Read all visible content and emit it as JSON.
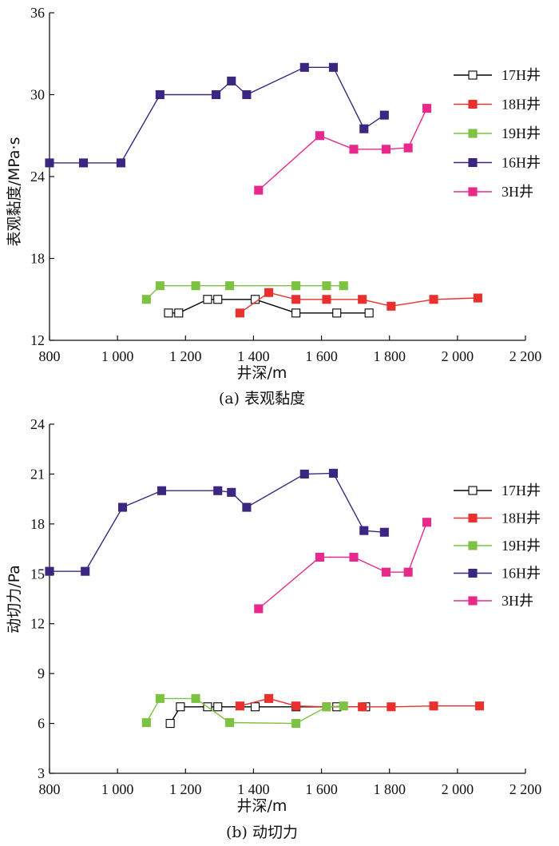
{
  "chart_data": [
    {
      "type": "line",
      "caption": "(a) 表观黏度",
      "xlabel": "井深/m",
      "ylabel": "表观黏度/MPa·s",
      "xlim": [
        800,
        2200
      ],
      "ylim": [
        12,
        36
      ],
      "xticks": [
        800,
        1000,
        1200,
        1400,
        1600,
        1800,
        2000,
        2200
      ],
      "xtick_labels": [
        "800",
        "1 000",
        "1 200",
        "1 400",
        "1 600",
        "1 800",
        "2 000",
        "2 200"
      ],
      "yticks": [
        12,
        18,
        24,
        30,
        36
      ],
      "ytick_labels": [
        "12",
        "18",
        "24",
        "30",
        "36"
      ],
      "legend_position": "right",
      "series": [
        {
          "name": "17H井",
          "color": "#000000",
          "marker": "hollow-square",
          "x": [
            1150,
            1180,
            1265,
            1295,
            1405,
            1525,
            1645,
            1740
          ],
          "y": [
            14,
            14,
            15,
            15,
            15,
            14,
            14,
            14
          ]
        },
        {
          "name": "18H井",
          "color": "#e8302e",
          "marker": "filled-square",
          "x": [
            1360,
            1445,
            1525,
            1615,
            1720,
            1805,
            1930,
            2060
          ],
          "y": [
            14,
            15.5,
            15,
            15,
            15,
            14.5,
            15,
            15.1
          ]
        },
        {
          "name": "19H井",
          "color": "#7dc242",
          "marker": "filled-square",
          "x": [
            1085,
            1125,
            1230,
            1330,
            1525,
            1615,
            1665
          ],
          "y": [
            15,
            16,
            16,
            16,
            16,
            16,
            16
          ]
        },
        {
          "name": "16H井",
          "color": "#3b2780",
          "marker": "filled-square",
          "x": [
            800,
            900,
            1010,
            1125,
            1290,
            1335,
            1380,
            1550,
            1635,
            1725,
            1785
          ],
          "y": [
            25,
            25,
            25,
            30,
            30,
            31,
            30,
            32,
            32,
            27.5,
            28.5
          ]
        },
        {
          "name": "3H井",
          "color": "#e8288a",
          "marker": "filled-square",
          "x": [
            1415,
            1595,
            1695,
            1790,
            1855,
            1910
          ],
          "y": [
            23,
            27,
            26,
            26,
            26.1,
            29
          ]
        }
      ]
    },
    {
      "type": "line",
      "caption": "(b) 动切力",
      "xlabel": "井深/m",
      "ylabel": "动切力/Pa",
      "xlim": [
        800,
        2200
      ],
      "ylim": [
        3,
        24
      ],
      "xticks": [
        800,
        1000,
        1200,
        1400,
        1600,
        1800,
        2000,
        2200
      ],
      "xtick_labels": [
        "800",
        "1 000",
        "1 200",
        "1 400",
        "1 600",
        "1 800",
        "2 000",
        "2 200"
      ],
      "yticks": [
        3,
        6,
        9,
        12,
        15,
        18,
        21,
        24
      ],
      "ytick_labels": [
        "3",
        "6",
        "9",
        "12",
        "15",
        "18",
        "21",
        "24"
      ],
      "legend_position": "right",
      "series": [
        {
          "name": "17H井",
          "color": "#000000",
          "marker": "hollow-square",
          "x": [
            1155,
            1185,
            1265,
            1295,
            1405,
            1525,
            1645,
            1730
          ],
          "y": [
            6,
            7,
            7,
            7,
            7,
            7,
            7,
            7
          ]
        },
        {
          "name": "18H井",
          "color": "#e8302e",
          "marker": "filled-square",
          "x": [
            1360,
            1445,
            1525,
            1615,
            1720,
            1805,
            1930,
            2065
          ],
          "y": [
            7.05,
            7.5,
            7.05,
            7,
            7,
            7,
            7.05,
            7.05
          ]
        },
        {
          "name": "19H井",
          "color": "#7dc242",
          "marker": "filled-square",
          "x": [
            1085,
            1125,
            1230,
            1330,
            1525,
            1615,
            1665
          ],
          "y": [
            6.05,
            7.5,
            7.5,
            6.05,
            6,
            7,
            7.05
          ]
        },
        {
          "name": "16H井",
          "color": "#3b2780",
          "marker": "filled-square",
          "x": [
            800,
            905,
            1015,
            1130,
            1295,
            1335,
            1380,
            1550,
            1635,
            1725,
            1785
          ],
          "y": [
            15.15,
            15.15,
            19,
            20,
            20,
            19.9,
            19,
            21,
            21.05,
            17.6,
            17.5
          ]
        },
        {
          "name": "3H井",
          "color": "#e8288a",
          "marker": "filled-square",
          "x": [
            1415,
            1595,
            1695,
            1790,
            1855,
            1910
          ],
          "y": [
            12.9,
            16,
            16,
            15.1,
            15.1,
            18.1
          ]
        }
      ]
    }
  ]
}
